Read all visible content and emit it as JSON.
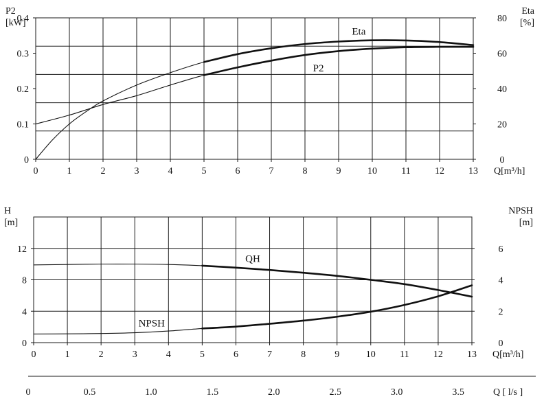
{
  "chart_data": [
    {
      "type": "line",
      "x_label": "Q[m³/h]",
      "left_axis_label": [
        "P2",
        "[kW]"
      ],
      "right_axis_label": [
        "Eta",
        "[%]"
      ],
      "x_ticks": [
        0,
        1,
        2,
        3,
        4,
        5,
        6,
        7,
        8,
        9,
        10,
        11,
        12,
        13
      ],
      "xlim": [
        0,
        13
      ],
      "left_ticks": [
        "0",
        "0.1",
        "0.2",
        "0.3",
        "0.4"
      ],
      "left_lim": [
        0,
        0.4
      ],
      "right_ticks": [
        "0",
        "20",
        "40",
        "60",
        "80"
      ],
      "right_lim": [
        0,
        80
      ],
      "grid": true,
      "series": [
        {
          "name": "P2",
          "axis": "left",
          "bold_from_x": 5,
          "x": [
            0,
            1,
            2,
            3,
            4,
            5,
            6,
            7,
            8,
            9,
            10,
            11,
            12,
            13
          ],
          "y": [
            0.1,
            0.125,
            0.155,
            0.18,
            0.21,
            0.238,
            0.26,
            0.279,
            0.295,
            0.306,
            0.313,
            0.317,
            0.318,
            0.318
          ]
        },
        {
          "name": "Eta",
          "axis": "right",
          "bold_from_x": 5,
          "x": [
            0,
            0.5,
            1,
            1.5,
            2,
            3,
            4,
            5,
            6,
            7,
            8,
            9,
            10,
            11,
            12,
            13
          ],
          "y": [
            0,
            11,
            20,
            27,
            33,
            42,
            49,
            55,
            59.5,
            62.8,
            65.2,
            66.6,
            67.3,
            67.2,
            66.3,
            64.6
          ]
        }
      ]
    },
    {
      "type": "line",
      "x_label": "Q[m³/h]",
      "left_axis_label": [
        "H",
        "[m]"
      ],
      "right_axis_label": [
        "NPSH",
        "[m]"
      ],
      "x_ticks": [
        0,
        1,
        2,
        3,
        4,
        5,
        6,
        7,
        8,
        9,
        10,
        11,
        12,
        13
      ],
      "xlim": [
        0,
        13
      ],
      "left_ticks": [
        "0",
        "4",
        "8",
        "12"
      ],
      "left_lim": [
        0,
        16
      ],
      "right_ticks": [
        "0",
        "2",
        "4",
        "6"
      ],
      "right_lim": [
        0,
        8
      ],
      "grid": true,
      "series": [
        {
          "name": "QH",
          "axis": "left",
          "bold_from_x": 5,
          "x": [
            0,
            1,
            2,
            3,
            4,
            5,
            6,
            7,
            8,
            9,
            10,
            11,
            12,
            13
          ],
          "y": [
            9.9,
            9.95,
            10.0,
            10.0,
            9.95,
            9.8,
            9.55,
            9.25,
            8.9,
            8.5,
            8.0,
            7.45,
            6.7,
            5.85
          ]
        },
        {
          "name": "NPSH",
          "axis": "right",
          "bold_from_x": 5,
          "x": [
            0,
            1,
            2,
            3,
            4,
            5,
            6,
            7,
            8,
            9,
            10,
            11,
            12,
            13
          ],
          "y": [
            0.55,
            0.56,
            0.58,
            0.63,
            0.74,
            0.9,
            1.02,
            1.2,
            1.4,
            1.65,
            1.97,
            2.4,
            2.95,
            3.65
          ]
        }
      ]
    },
    {
      "type": "axis",
      "x_label": "Q  [ l/s ]",
      "ticks": [
        "0",
        "0.5",
        "1.0",
        "1.5",
        "2.0",
        "2.5",
        "3.0",
        "3.5"
      ],
      "tick_values": [
        0,
        0.5,
        1.0,
        1.5,
        2.0,
        2.5,
        3.0,
        3.5
      ],
      "xlim_m3h": [
        0,
        13
      ],
      "conversion_factor_m3h_per_ls": 3.6
    }
  ]
}
